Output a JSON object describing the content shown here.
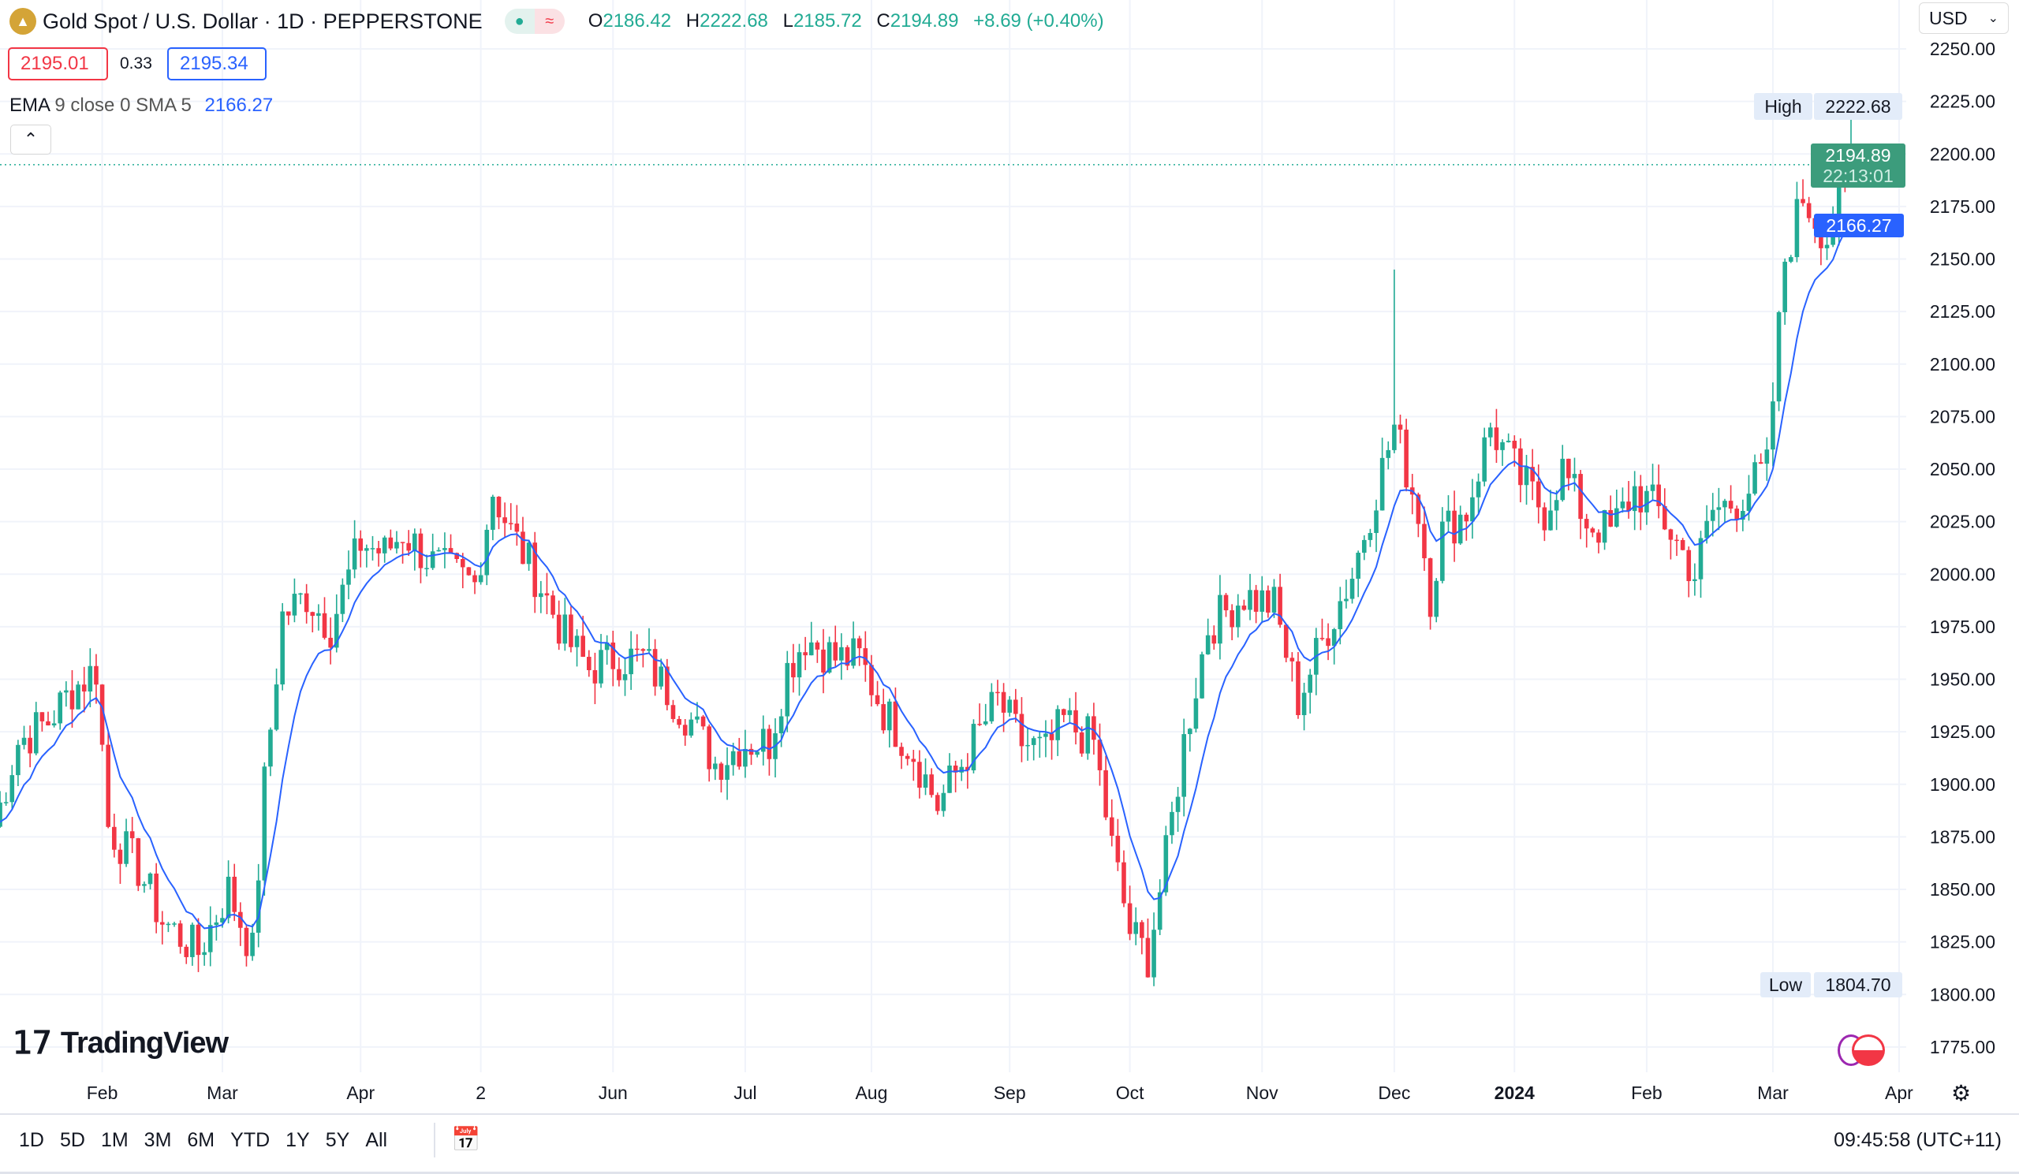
{
  "header": {
    "title": "Gold Spot / U.S. Dollar · 1D · PEPPERSTONE",
    "o_label": "O",
    "o": "2186.42",
    "h_label": "H",
    "h": "2222.68",
    "l_label": "L",
    "l": "2185.72",
    "c_label": "C",
    "c": "2194.89",
    "change": "+8.69 (+0.40%)"
  },
  "quote": {
    "bid": "2195.01",
    "spread": "0.33",
    "ask": "2195.34"
  },
  "indicator": {
    "name": "EMA",
    "params": "9 close 0 SMA 5",
    "value": "2166.27"
  },
  "currency": "USD",
  "tags": {
    "high_label": "High",
    "high_value": "2222.68",
    "low_label": "Low",
    "low_value": "1804.70",
    "last_price": "2194.89",
    "countdown": "22:13:01",
    "ema_value": "2166.27"
  },
  "brand": "TradingView",
  "toolbar": {
    "ranges": [
      "1D",
      "5D",
      "1M",
      "3M",
      "6M",
      "YTD",
      "1Y",
      "5Y",
      "All"
    ],
    "clock": "09:45:58 (UTC+11)"
  },
  "colors": {
    "up": "#22ab94",
    "down": "#f23645",
    "ema": "#2962ff"
  },
  "chart_data": {
    "type": "candlestick",
    "title": "Gold Spot / U.S. Dollar · 1D",
    "ylim": [
      1762,
      2262
    ],
    "y_ticks": [
      "2250.00",
      "2225.00",
      "2200.00",
      "2175.00",
      "2150.00",
      "2125.00",
      "2100.00",
      "2075.00",
      "2050.00",
      "2025.00",
      "2000.00",
      "1975.00",
      "1950.00",
      "1925.00",
      "1900.00",
      "1875.00",
      "1850.00",
      "1825.00",
      "1800.00",
      "1775.00"
    ],
    "x_ticks": [
      {
        "label": "Feb",
        "day": 17
      },
      {
        "label": "Mar",
        "day": 37
      },
      {
        "label": "Apr",
        "day": 60
      },
      {
        "label": "2",
        "day": 80
      },
      {
        "label": "Jun",
        "day": 102
      },
      {
        "label": "Jul",
        "day": 124
      },
      {
        "label": "Aug",
        "day": 145
      },
      {
        "label": "Sep",
        "day": 168
      },
      {
        "label": "Oct",
        "day": 188
      },
      {
        "label": "Nov",
        "day": 210
      },
      {
        "label": "Dec",
        "day": 232
      },
      {
        "label": "2024",
        "day": 252,
        "bold": true
      },
      {
        "label": "Feb",
        "day": 274
      },
      {
        "label": "Mar",
        "day": 295
      },
      {
        "label": "Apr",
        "day": 316
      }
    ],
    "close_waypoints": [
      [
        0,
        1880
      ],
      [
        4,
        1920
      ],
      [
        9,
        1930
      ],
      [
        13,
        1945
      ],
      [
        17,
        1955
      ],
      [
        19,
        1880
      ],
      [
        24,
        1860
      ],
      [
        28,
        1835
      ],
      [
        34,
        1820
      ],
      [
        39,
        1850
      ],
      [
        43,
        1820
      ],
      [
        45,
        1900
      ],
      [
        48,
        1980
      ],
      [
        52,
        1990
      ],
      [
        56,
        1975
      ],
      [
        61,
        2015
      ],
      [
        65,
        2010
      ],
      [
        68,
        2020
      ],
      [
        73,
        2005
      ],
      [
        80,
        1995
      ],
      [
        83,
        2040
      ],
      [
        86,
        2020
      ],
      [
        90,
        2000
      ],
      [
        95,
        1970
      ],
      [
        99,
        1955
      ],
      [
        103,
        1960
      ],
      [
        108,
        1960
      ],
      [
        112,
        1945
      ],
      [
        116,
        1930
      ],
      [
        120,
        1910
      ],
      [
        125,
        1920
      ],
      [
        129,
        1920
      ],
      [
        132,
        1955
      ],
      [
        135,
        1970
      ],
      [
        140,
        1960
      ],
      [
        144,
        1960
      ],
      [
        148,
        1935
      ],
      [
        153,
        1915
      ],
      [
        157,
        1890
      ],
      [
        160,
        1905
      ],
      [
        163,
        1920
      ],
      [
        167,
        1940
      ],
      [
        171,
        1920
      ],
      [
        175,
        1915
      ],
      [
        178,
        1930
      ],
      [
        183,
        1920
      ],
      [
        186,
        1870
      ],
      [
        189,
        1830
      ],
      [
        192,
        1818
      ],
      [
        195,
        1865
      ],
      [
        198,
        1920
      ],
      [
        202,
        1975
      ],
      [
        208,
        1990
      ],
      [
        213,
        1985
      ],
      [
        217,
        1940
      ],
      [
        222,
        1975
      ],
      [
        226,
        2000
      ],
      [
        230,
        2040
      ],
      [
        233,
        2070
      ],
      [
        237,
        2030
      ],
      [
        239,
        1990
      ],
      [
        241,
        2020
      ],
      [
        245,
        2030
      ],
      [
        249,
        2070
      ],
      [
        254,
        2045
      ],
      [
        258,
        2030
      ],
      [
        261,
        2050
      ],
      [
        265,
        2025
      ],
      [
        269,
        2020
      ],
      [
        273,
        2040
      ],
      [
        277,
        2030
      ],
      [
        283,
        2000
      ],
      [
        286,
        2030
      ],
      [
        290,
        2035
      ],
      [
        295,
        2050
      ],
      [
        298,
        2150
      ],
      [
        301,
        2180
      ],
      [
        305,
        2160
      ],
      [
        308,
        2186.42
      ]
    ],
    "last_candle": {
      "open": 2186.42,
      "high": 2222.68,
      "low": 2185.72,
      "close": 2194.89
    },
    "period_high": 2222.68,
    "period_low": 1804.7,
    "ema_period": 9
  }
}
